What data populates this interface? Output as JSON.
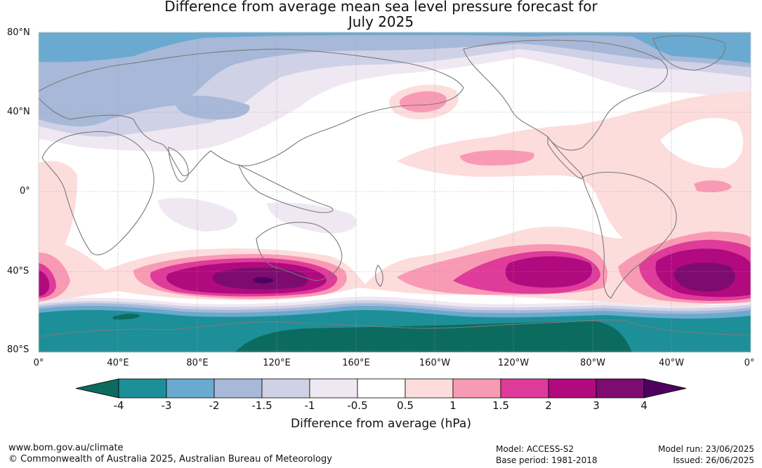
{
  "title_line1": "Difference from average mean sea level pressure forecast for",
  "title_line2": "July 2025",
  "lat_labels": [
    "80°N",
    "40°N",
    "0°",
    "40°S",
    "80°S"
  ],
  "lon_labels": [
    "0°",
    "40°E",
    "80°E",
    "120°E",
    "160°E",
    "160°W",
    "120°W",
    "80°W",
    "40°W",
    "0°"
  ],
  "colorbar": {
    "ticks": [
      "-4",
      "-3",
      "-2",
      "-1.5",
      "-1",
      "-0.5",
      "0.5",
      "1",
      "1.5",
      "2",
      "3",
      "4"
    ],
    "colors": [
      "#0b6b5e",
      "#1d8f98",
      "#6aaad0",
      "#a7b8d8",
      "#cfd1e6",
      "#efe8f2",
      "#ffffff",
      "#fddcdc",
      "#f99ab4",
      "#df3b9a",
      "#b1097e",
      "#7d0b70",
      "#4e0060"
    ],
    "label": "Difference from average (hPa)"
  },
  "footer": {
    "url": "www.bom.gov.au/climate",
    "copyright": "© Commonwealth of Australia 2025, Australian Bureau of Meteorology",
    "model": "Model: ACCESS-S2",
    "base_period": "Base period: 1981-2018",
    "model_run": "Model run: 23/06/2025",
    "issued": "Issued: 26/06/2025"
  },
  "colors": {
    "land_outline": "#7a7a7a",
    "grid": "#9a9a9a"
  }
}
